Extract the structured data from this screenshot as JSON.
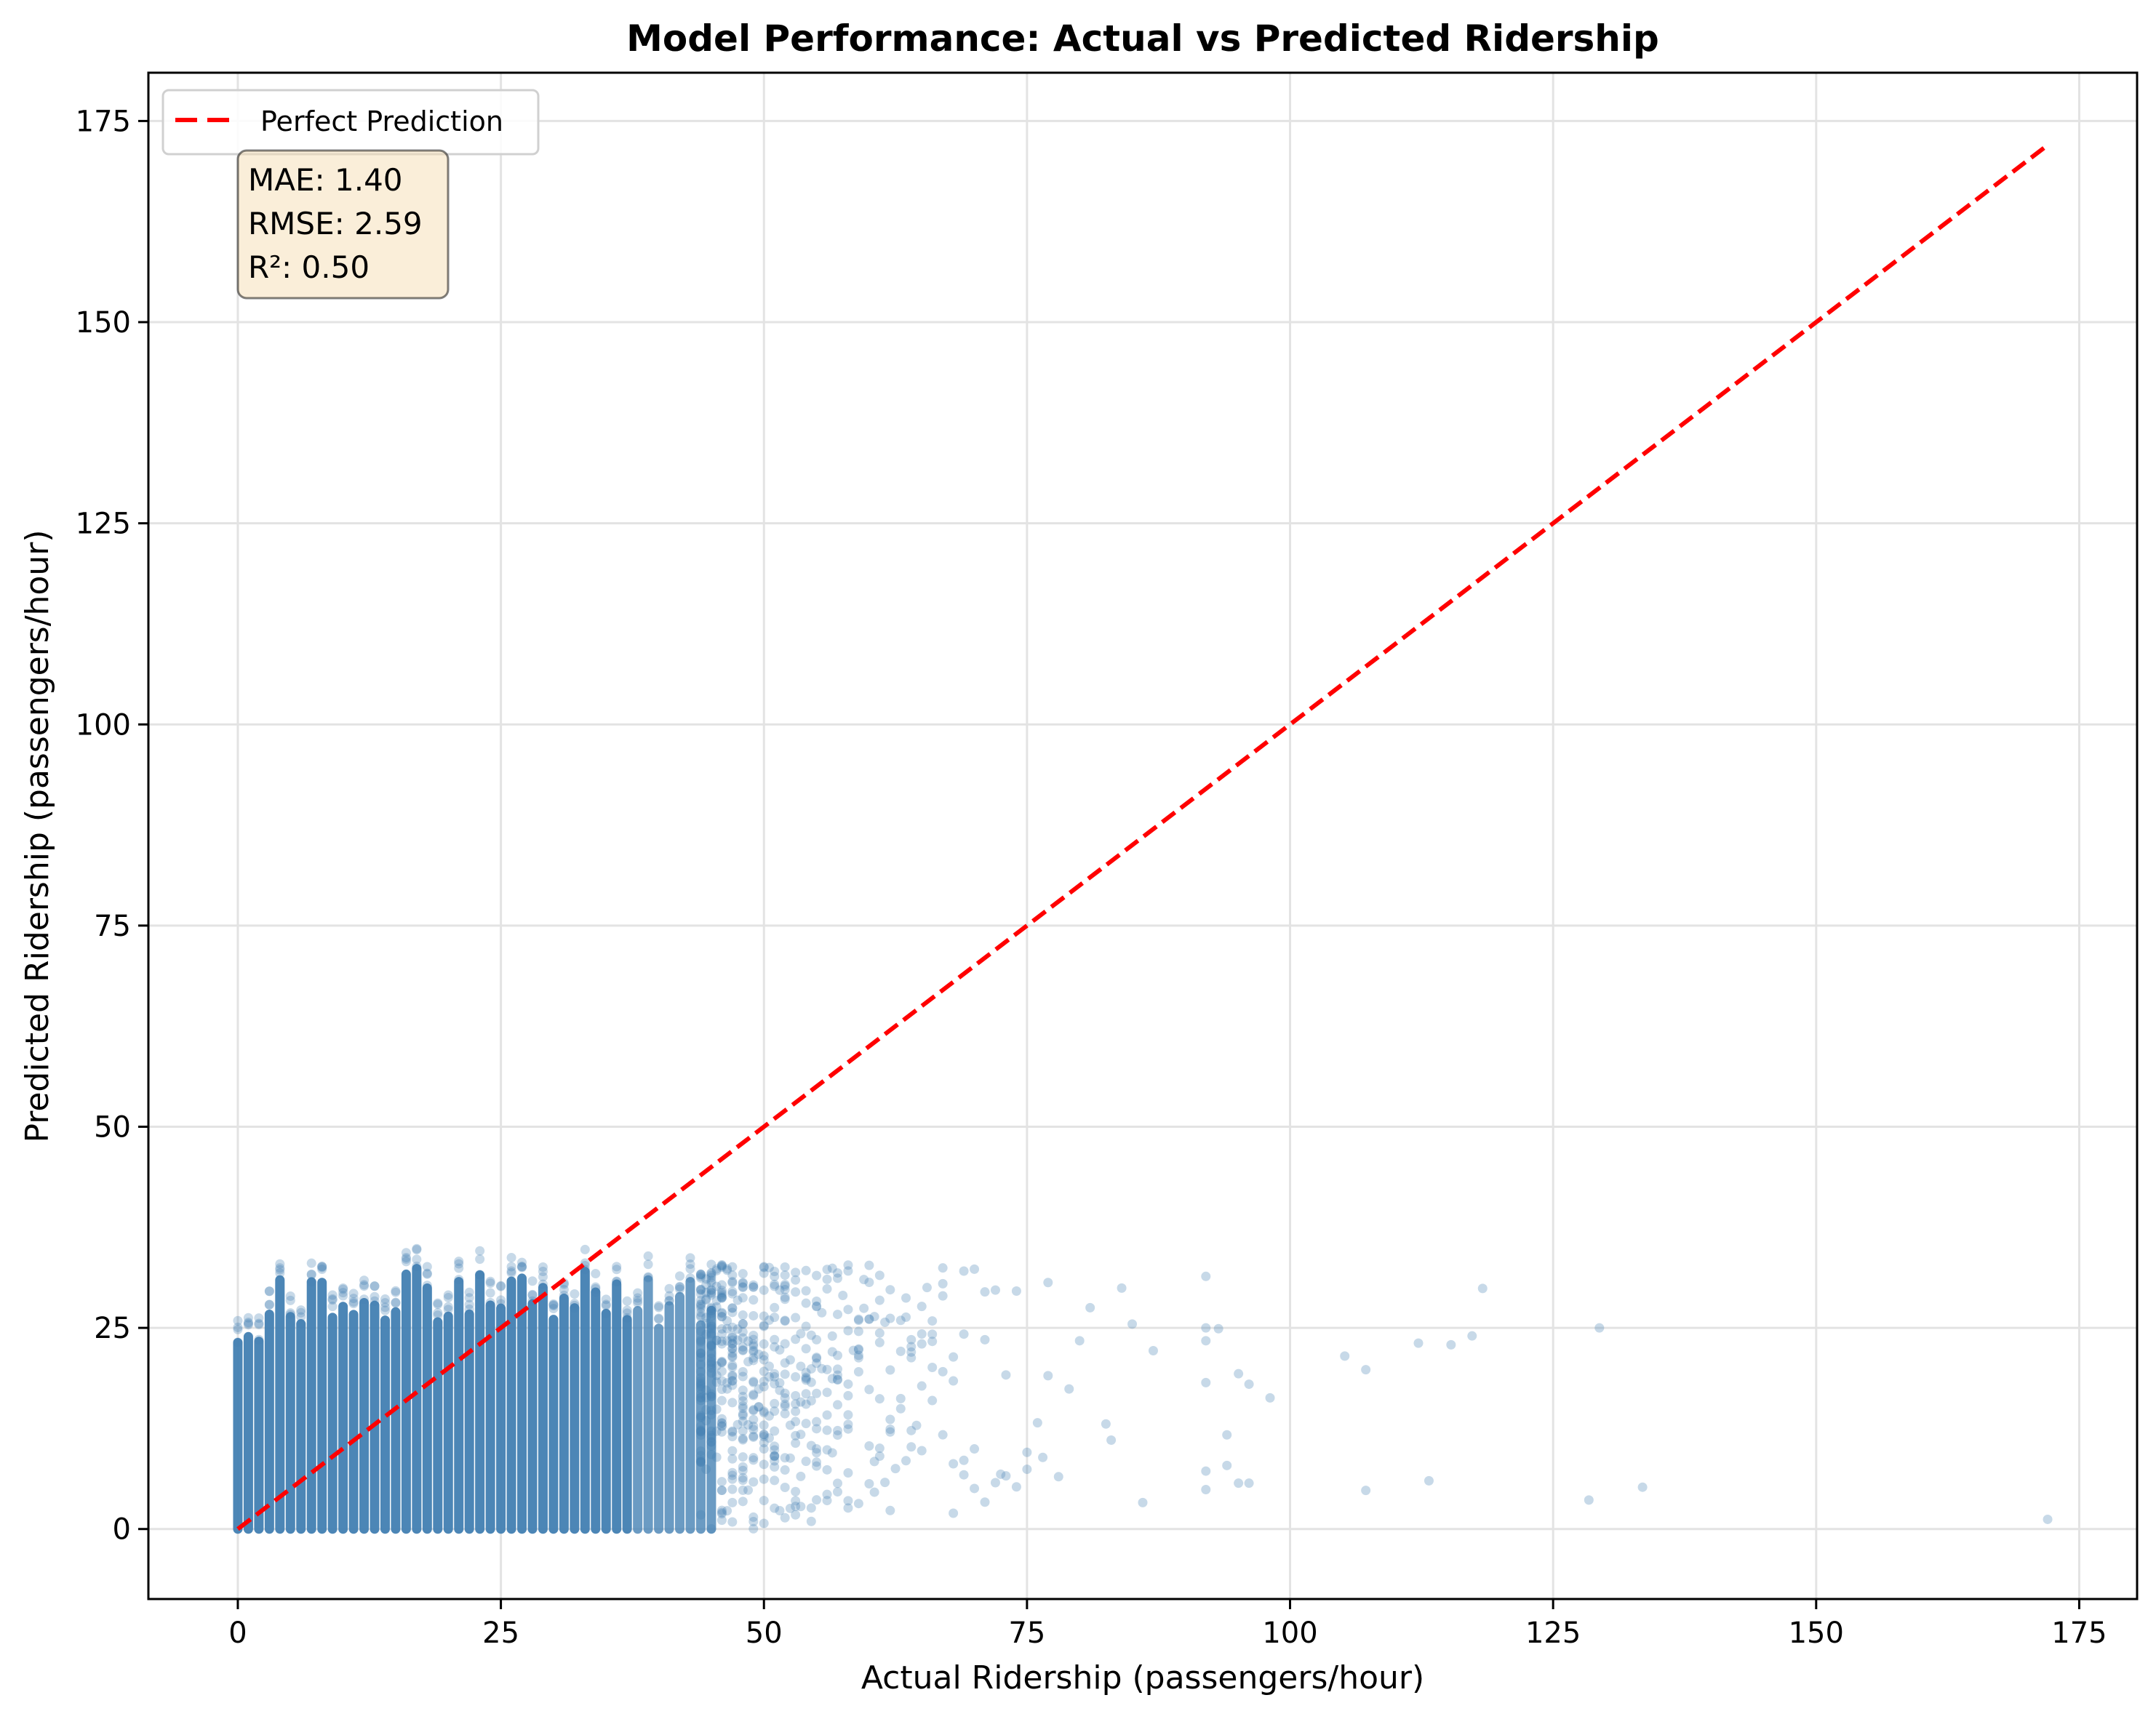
{
  "chart_data": {
    "type": "scatter",
    "title": "Model Performance: Actual vs Predicted Ridership",
    "xlabel": "Actual Ridership (passengers/hour)",
    "ylabel": "Predicted Ridership (passengers/hour)",
    "xlim": [
      -8.5,
      180.5
    ],
    "ylim": [
      -8.7,
      181
    ],
    "xticks": [
      "0",
      "25",
      "50",
      "75",
      "100",
      "125",
      "150",
      "175"
    ],
    "yticks": [
      "0",
      "25",
      "50",
      "75",
      "100",
      "125",
      "150",
      "175"
    ],
    "grid": true,
    "point_color": "#4682B4",
    "point_alpha": 0.3,
    "dense_cloud": {
      "actual_range": [
        0,
        90
      ],
      "predicted_range": [
        0,
        35
      ],
      "note_density": "saturated for actual 0-45, thinning to sparse by 90"
    },
    "outlier_points": [
      [
        92.0,
        31.4
      ],
      [
        118.3,
        29.9
      ],
      [
        92.0,
        25.0
      ],
      [
        93.2,
        24.9
      ],
      [
        129.4,
        25.0
      ],
      [
        92.0,
        23.4
      ],
      [
        112.2,
        23.1
      ],
      [
        115.3,
        22.9
      ],
      [
        117.3,
        24.0
      ],
      [
        105.2,
        21.5
      ],
      [
        107.2,
        19.8
      ],
      [
        95.1,
        19.3
      ],
      [
        92.0,
        18.2
      ],
      [
        96.1,
        18.0
      ],
      [
        98.1,
        16.3
      ],
      [
        94.0,
        11.7
      ],
      [
        94.0,
        7.9
      ],
      [
        92.0,
        7.2
      ],
      [
        95.1,
        5.7
      ],
      [
        96.1,
        5.7
      ],
      [
        92.0,
        4.9
      ],
      [
        107.2,
        4.8
      ],
      [
        113.2,
        6.0
      ],
      [
        128.4,
        3.6
      ],
      [
        133.5,
        5.2
      ],
      [
        172.0,
        1.2
      ]
    ],
    "reference_line": {
      "name": "Perfect Prediction",
      "from": [
        0,
        0
      ],
      "to": [
        172,
        172
      ],
      "color": "#FF0000",
      "style": "dashed"
    },
    "legend": {
      "placement": "top-left",
      "entries": [
        "Perfect Prediction"
      ]
    },
    "stats_box": {
      "lines": [
        "MAE: 1.40",
        "RMSE: 2.59",
        "R²: 0.50"
      ],
      "background": "#F5DEB3"
    }
  }
}
